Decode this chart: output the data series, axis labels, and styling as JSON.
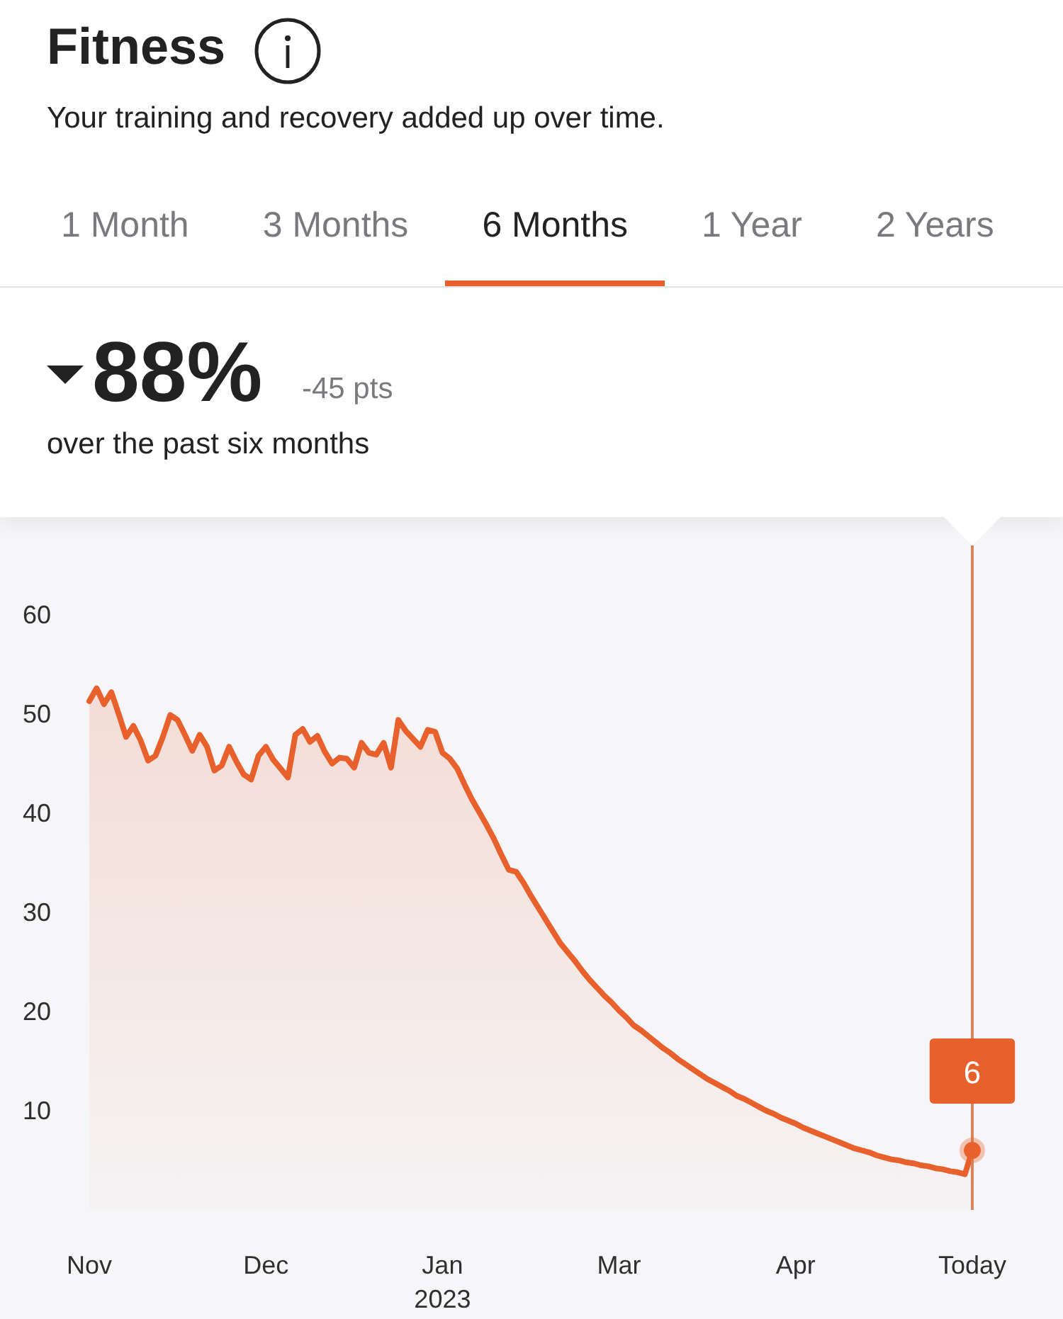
{
  "chart_data": {
    "type": "area",
    "title": "Fitness",
    "subtitle": "Your training and recovery added up over time.",
    "annotations": [
      "1 Month",
      "3 Months",
      "6 Months",
      "1 Year",
      "2 Years",
      "88%",
      "-45 pts",
      "over the past six months",
      {
        "text": "6",
        "x": "Today",
        "y": 6
      }
    ],
    "categories": [
      "Nov",
      null,
      null,
      null,
      null,
      null,
      null,
      null,
      null,
      null,
      null,
      null,
      null,
      null,
      null,
      null,
      null,
      null,
      null,
      null,
      null,
      null,
      null,
      null,
      "Dec",
      null,
      null,
      null,
      null,
      null,
      null,
      null,
      null,
      null,
      null,
      null,
      null,
      null,
      null,
      null,
      null,
      null,
      null,
      null,
      null,
      null,
      null,
      null,
      "Jan\n2023",
      null,
      null,
      null,
      null,
      null,
      null,
      null,
      null,
      null,
      null,
      null,
      null,
      null,
      null,
      null,
      null,
      null,
      null,
      null,
      null,
      null,
      null,
      null,
      "Mar",
      null,
      null,
      null,
      null,
      null,
      null,
      null,
      null,
      null,
      null,
      null,
      null,
      null,
      null,
      null,
      null,
      null,
      null,
      null,
      null,
      null,
      null,
      null,
      "Apr",
      null,
      null,
      null,
      null,
      null,
      null,
      null,
      null,
      null,
      null,
      null,
      null,
      null,
      null,
      null,
      null,
      null,
      null,
      null,
      null,
      null,
      null,
      null,
      "Today"
    ],
    "values": [
      51.3,
      52.6,
      51.0,
      52.2,
      50.0,
      47.7,
      48.8,
      47.3,
      45.3,
      45.8,
      47.7,
      49.9,
      49.4,
      47.9,
      46.3,
      47.9,
      46.7,
      44.3,
      44.8,
      46.7,
      45.2,
      43.9,
      43.4,
      45.8,
      46.7,
      45.4,
      44.5,
      43.6,
      47.9,
      48.5,
      47.2,
      47.8,
      46.2,
      45.0,
      45.6,
      45.5,
      44.6,
      47.1,
      46.1,
      45.9,
      47.1,
      44.6,
      49.4,
      48.3,
      47.5,
      46.7,
      48.4,
      48.2,
      46.1,
      45.5,
      44.5,
      42.9,
      41.4,
      40.1,
      38.8,
      37.4,
      35.8,
      34.3,
      34.1,
      33.0,
      31.7,
      30.5,
      29.3,
      28.1,
      26.9,
      26.0,
      25.1,
      24.1,
      23.2,
      22.4,
      21.6,
      20.9,
      20.1,
      19.4,
      18.6,
      18.1,
      17.5,
      16.9,
      16.3,
      15.8,
      15.2,
      14.7,
      14.2,
      13.7,
      13.2,
      12.8,
      12.4,
      12.0,
      11.5,
      11.2,
      10.8,
      10.4,
      10.0,
      9.7,
      9.3,
      9.0,
      8.7,
      8.3,
      8.0,
      7.7,
      7.4,
      7.1,
      6.8,
      6.5,
      6.2,
      6.0,
      5.8,
      5.5,
      5.3,
      5.1,
      5.0,
      4.8,
      4.7,
      4.5,
      4.4,
      4.2,
      4.1,
      3.9,
      3.8,
      3.6,
      6.0
    ],
    "color": "#e8602c",
    "ylim": [
      0,
      67
    ],
    "yticks": [
      10,
      20,
      30,
      40,
      50,
      60
    ],
    "ref_lines": [
      {
        "axis": "x",
        "value": "Today",
        "color": "#d8845e"
      }
    ],
    "marker": "none"
  }
}
